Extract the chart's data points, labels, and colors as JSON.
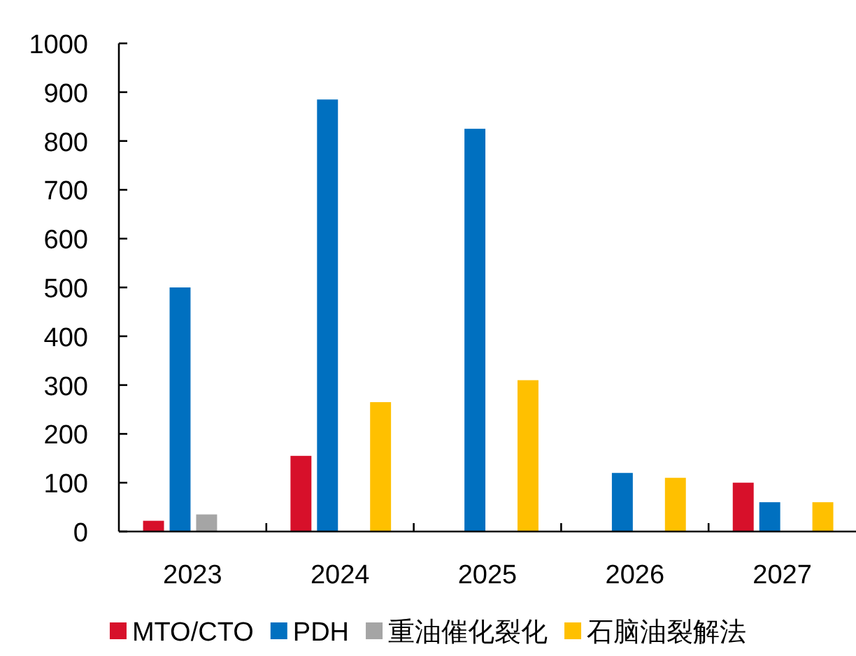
{
  "chart_data": {
    "type": "bar",
    "categories": [
      "2023",
      "2024",
      "2025",
      "2026",
      "2027"
    ],
    "series": [
      {
        "name": "MTO/CTO",
        "color": "#d7102a",
        "values": [
          22,
          155,
          null,
          null,
          100
        ]
      },
      {
        "name": "PDH",
        "color": "#0070c0",
        "values": [
          500,
          885,
          825,
          120,
          60
        ]
      },
      {
        "name": "重油催化裂化",
        "color": "#a5a5a5",
        "values": [
          35,
          null,
          null,
          null,
          null
        ]
      },
      {
        "name": "石脑油裂解法",
        "color": "#ffc000",
        "values": [
          null,
          265,
          310,
          110,
          60
        ]
      }
    ],
    "ylim": [
      0,
      1000
    ],
    "yticks": [
      0,
      100,
      200,
      300,
      400,
      500,
      600,
      700,
      800,
      900,
      1000
    ],
    "legend": "bottom"
  }
}
